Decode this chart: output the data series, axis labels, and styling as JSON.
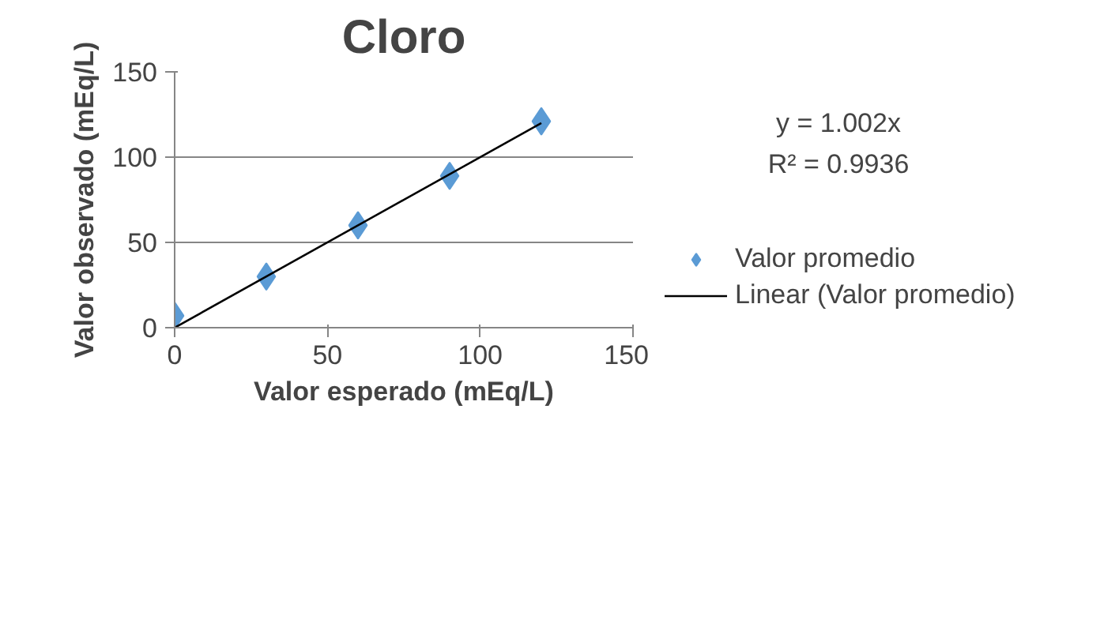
{
  "chart_data": {
    "type": "scatter",
    "title": "Cloro",
    "xlabel": "Valor esperado (mEq/L)",
    "ylabel": "Valor observado (mEq/L)",
    "xlim": [
      0,
      150
    ],
    "xticks": [
      0,
      50,
      100,
      150
    ],
    "ylim": [
      0,
      150
    ],
    "yticks": [
      0,
      50,
      100,
      150
    ],
    "grid": "y",
    "legend": "right",
    "marker": "diamond",
    "annotations": [
      "y = 1.002x",
      "R² = 0.9936"
    ],
    "series": [
      {
        "name": "Valor promedio",
        "color": "#5b9bd5",
        "x": [
          0,
          30,
          60,
          90,
          120
        ],
        "values": [
          7,
          30,
          60,
          89,
          121
        ]
      },
      {
        "name": "Linear (Valor promedio)",
        "color": "#000000",
        "type": "line",
        "line_style": "solid",
        "marker": "none",
        "x": [
          0,
          120
        ],
        "values": [
          0,
          120
        ]
      }
    ]
  }
}
